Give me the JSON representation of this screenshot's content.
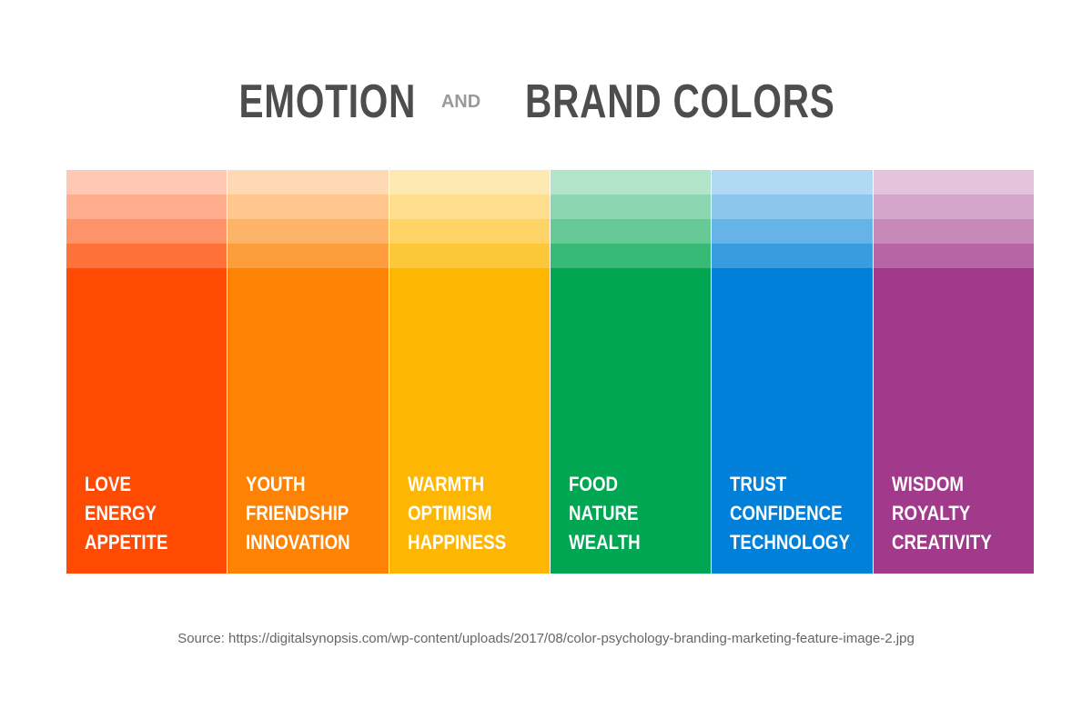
{
  "title": {
    "main": "EMOTION",
    "connector": "AND",
    "rest": "BRAND COLORS"
  },
  "columns": [
    {
      "color": "#fe4a03",
      "words": [
        "LOVE",
        "ENERGY",
        "APPETITE"
      ]
    },
    {
      "color": "#fe8204",
      "words": [
        "YOUTH",
        "FRIENDSHIP",
        "INNOVATION"
      ]
    },
    {
      "color": "#fdb702",
      "words": [
        "WARMTH",
        "OPTIMISM",
        "HAPPINESS"
      ]
    },
    {
      "color": "#00a651",
      "words": [
        "FOOD",
        "NATURE",
        "WEALTH"
      ]
    },
    {
      "color": "#0080d8",
      "words": [
        "TRUST",
        "CONFIDENCE",
        "TECHNOLOGY"
      ]
    },
    {
      "color": "#a23a8c",
      "words": [
        "WISDOM",
        "ROYALTY",
        "CREATIVITY"
      ]
    }
  ],
  "source": "Source: https://digitalsynopsis.com/wp-content/uploads/2017/08/color-psychology-branding-marketing-feature-image-2.jpg"
}
